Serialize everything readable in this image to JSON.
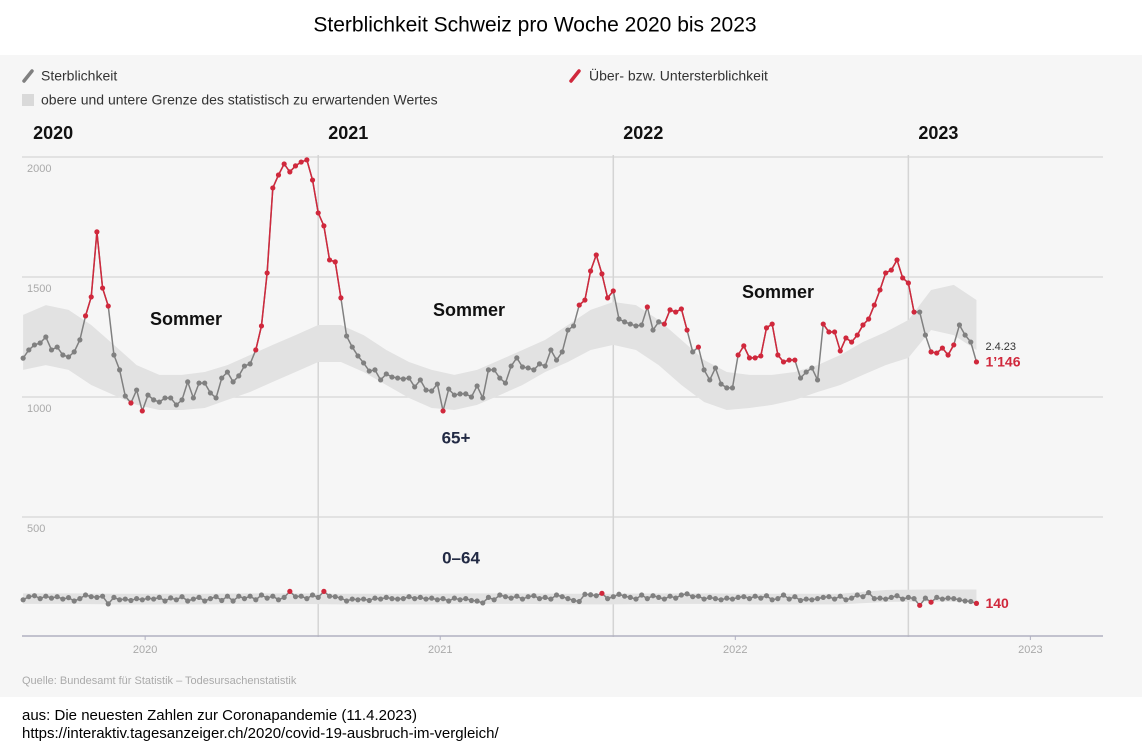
{
  "chart_data": {
    "type": "line",
    "title": "Sterblichkeit Schweiz pro Woche 2020 bis 2023",
    "legend": {
      "line": "Sterblichkeit",
      "band": "obere und untere Grenze des statistisch zu erwartenden Wertes",
      "excess": "Über- bzw. Untersterblichkeit"
    },
    "colors": {
      "line": "#808080",
      "excess": "#d0283c",
      "band": "#e2e2e2"
    },
    "grid": true,
    "ylim": [
      0,
      2000
    ],
    "yticks": [
      500,
      1000,
      1500,
      2000
    ],
    "xlim": [
      -0.2,
      190.3
    ],
    "xticks": [
      {
        "value": 21.5,
        "label": "2020"
      },
      {
        "value": 73.5,
        "label": "2021"
      },
      {
        "value": 125.5,
        "label": "2022"
      },
      {
        "value": 177.5,
        "label": "2023"
      }
    ],
    "year_markers": [
      {
        "value": 0,
        "label": "2020"
      },
      {
        "value": 52,
        "label": "2021"
      },
      {
        "value": 104,
        "label": "2022"
      },
      {
        "value": 156,
        "label": "2023"
      }
    ],
    "annotations": [
      "Sommer",
      "Sommer",
      "Sommer"
    ],
    "source": "Quelle: Bundesamt für Statistik – Todesursachenstatistik",
    "series": [
      {
        "name": "65+",
        "values": [
          1162,
          1196,
          1217,
          1225,
          1250,
          1196,
          1208,
          1175,
          1167,
          1188,
          1238,
          1338,
          1417,
          1688,
          1454,
          1379,
          1175,
          1113,
          1004,
          975,
          1029,
          942,
          1008,
          988,
          979,
          996,
          996,
          967,
          988,
          1063,
          996,
          1058,
          1058,
          1017,
          996,
          1079,
          1104,
          1063,
          1088,
          1129,
          1138,
          1196,
          1296,
          1517,
          1871,
          1925,
          1971,
          1938,
          1963,
          1979,
          1988,
          1904,
          1767,
          1713,
          1571,
          1563,
          1413,
          1254,
          1208,
          1171,
          1142,
          1108,
          1113,
          1071,
          1096,
          1083,
          1079,
          1075,
          1079,
          1042,
          1071,
          1029,
          1025,
          1054,
          942,
          1033,
          1008,
          1013,
          1013,
          1000,
          1046,
          996,
          1113,
          1113,
          1079,
          1058,
          1129,
          1163,
          1125,
          1121,
          1113,
          1138,
          1129,
          1196,
          1154,
          1188,
          1279,
          1296,
          1383,
          1404,
          1525,
          1592,
          1513,
          1413,
          1442,
          1325,
          1313,
          1304,
          1296,
          1300,
          1375,
          1279,
          1313,
          1304,
          1363,
          1354,
          1367,
          1279,
          1188,
          1208,
          1113,
          1071,
          1121,
          1054,
          1038,
          1038,
          1175,
          1213,
          1163,
          1163,
          1171,
          1288,
          1304,
          1175,
          1146,
          1154,
          1154,
          1079,
          1104,
          1121,
          1071,
          1304,
          1271,
          1271,
          1192,
          1246,
          1229,
          1258,
          1300,
          1325,
          1383,
          1446,
          1517,
          1529,
          1571,
          1496,
          1475,
          1354,
          1354,
          1258,
          1188,
          1183,
          1204,
          1175,
          1217,
          1300,
          1258,
          1229,
          1146
        ],
        "band": {
          "x": [
            0,
            4,
            8,
            12,
            16,
            20,
            24,
            28,
            32,
            36,
            40,
            44,
            48,
            52,
            56,
            60,
            64,
            68,
            72,
            76,
            80,
            84,
            88,
            92,
            96,
            100,
            104,
            108,
            112,
            116,
            120,
            124,
            128,
            132,
            136,
            140,
            144,
            148,
            152,
            156,
            160,
            164,
            168
          ],
          "upper": [
            1342,
            1383,
            1363,
            1300,
            1217,
            1133,
            1092,
            1092,
            1104,
            1133,
            1175,
            1217,
            1258,
            1300,
            1300,
            1258,
            1196,
            1146,
            1113,
            1092,
            1113,
            1154,
            1196,
            1238,
            1300,
            1363,
            1396,
            1383,
            1321,
            1238,
            1154,
            1104,
            1092,
            1092,
            1104,
            1133,
            1175,
            1229,
            1271,
            1321,
            1446,
            1467,
            1404
          ],
          "lower": [
            1113,
            1133,
            1113,
            1050,
            1008,
            967,
            946,
            946,
            954,
            988,
            1021,
            1063,
            1104,
            1146,
            1146,
            1104,
            1050,
            996,
            954,
            946,
            967,
            1008,
            1050,
            1104,
            1146,
            1196,
            1217,
            1196,
            1133,
            1050,
            979,
            946,
            954,
            967,
            988,
            1021,
            1050,
            1092,
            1133,
            1163,
            1279,
            1258,
            1196
          ]
        },
        "end_labels": [
          "2.4.23",
          "1’146"
        ]
      },
      {
        "name": "0–64",
        "values": [
          155,
          168,
          172,
          160,
          170,
          162,
          168,
          158,
          164,
          150,
          160,
          175,
          168,
          165,
          170,
          138,
          165,
          155,
          158,
          152,
          160,
          155,
          162,
          158,
          165,
          150,
          163,
          155,
          168,
          150,
          158,
          165,
          150,
          160,
          168,
          152,
          170,
          150,
          170,
          160,
          170,
          155,
          175,
          162,
          170,
          155,
          165,
          190,
          168,
          170,
          160,
          175,
          165,
          190,
          170,
          168,
          162,
          150,
          158,
          155,
          158,
          152,
          162,
          158,
          165,
          160,
          158,
          160,
          168,
          160,
          165,
          158,
          162,
          155,
          160,
          150,
          162,
          155,
          160,
          152,
          150,
          142,
          165,
          155,
          175,
          168,
          162,
          170,
          158,
          168,
          172,
          160,
          165,
          158,
          175,
          168,
          160,
          152,
          148,
          178,
          176,
          172,
          182,
          160,
          168,
          178,
          170,
          165,
          158,
          175,
          160,
          172,
          165,
          158,
          170,
          162,
          175,
          180,
          168,
          170,
          158,
          165,
          160,
          155,
          162,
          158,
          165,
          168,
          160,
          170,
          162,
          172,
          155,
          160,
          175,
          158,
          168,
          152,
          158,
          155,
          160,
          165,
          168,
          158,
          170,
          155,
          162,
          175,
          168,
          185,
          160,
          162,
          158,
          165,
          172,
          158,
          165,
          160,
          132,
          162,
          145,
          165,
          158,
          162,
          160,
          155,
          150,
          148,
          140
        ],
        "band": {
          "x": [
            0,
            8,
            16,
            24,
            32,
            40,
            48,
            56,
            64,
            72,
            80,
            88,
            96,
            104,
            112,
            120,
            128,
            136,
            144,
            152,
            160,
            168
          ],
          "upper": [
            182,
            182,
            180,
            180,
            180,
            182,
            182,
            180,
            180,
            180,
            182,
            182,
            180,
            180,
            182,
            182,
            180,
            180,
            180,
            196,
            198,
            198
          ],
          "lower": [
            138,
            138,
            136,
            136,
            136,
            138,
            138,
            136,
            136,
            136,
            138,
            138,
            136,
            136,
            138,
            138,
            136,
            136,
            136,
            146,
            148,
            146
          ]
        },
        "end_labels": [
          "140"
        ]
      }
    ]
  },
  "footer": [
    "aus: Die neuesten Zahlen zur Coronapandemie (11.4.2023)",
    "https://interaktiv.tagesanzeiger.ch/2020/covid-19-ausbruch-im-vergleich/"
  ]
}
